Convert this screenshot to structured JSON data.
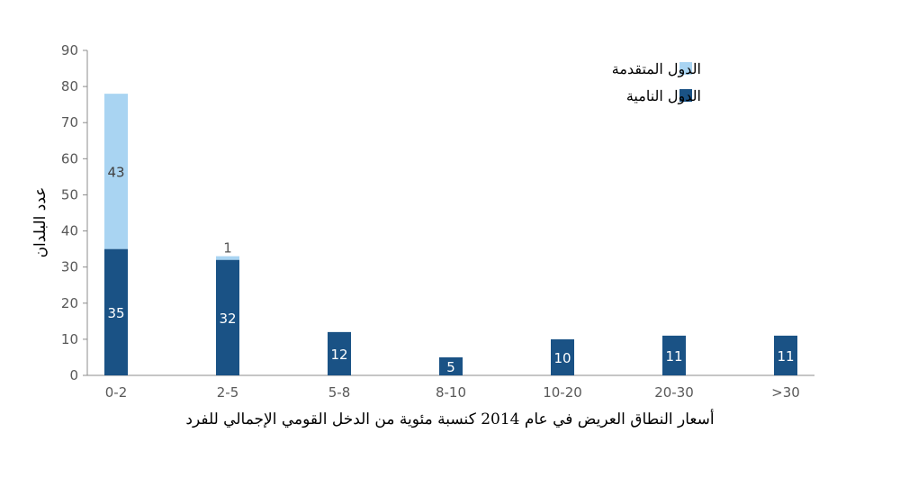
{
  "chart_data": {
    "type": "bar",
    "stacked": true,
    "categories": [
      "0-2",
      "2-5",
      "5-8",
      "8-10",
      "10-20",
      "20-30",
      ">30"
    ],
    "series": [
      {
        "name": "الدول النامية",
        "values": [
          35,
          32,
          12,
          5,
          10,
          11,
          11
        ],
        "color": "#1a5285",
        "label_color": "#ffffff"
      },
      {
        "name": "الدول المتقدمة",
        "values": [
          43,
          1,
          0,
          0,
          0,
          0,
          0
        ],
        "color": "#a9d4f2",
        "label_color": "#404040"
      }
    ],
    "title": "",
    "xlabel": "أسعار النطاق العريض في عام 2014 كنسبة مئوية من الدخل القومي الإجمالي للفرد",
    "ylabel": "عدد البلدان",
    "ylim": [
      0,
      90
    ],
    "yticks": [
      0,
      10,
      20,
      30,
      40,
      50,
      60,
      70,
      80,
      90
    ],
    "grid": false,
    "legend_position": "top-right",
    "legend_order": [
      "الدول المتقدمة",
      "الدول النامية"
    ]
  }
}
